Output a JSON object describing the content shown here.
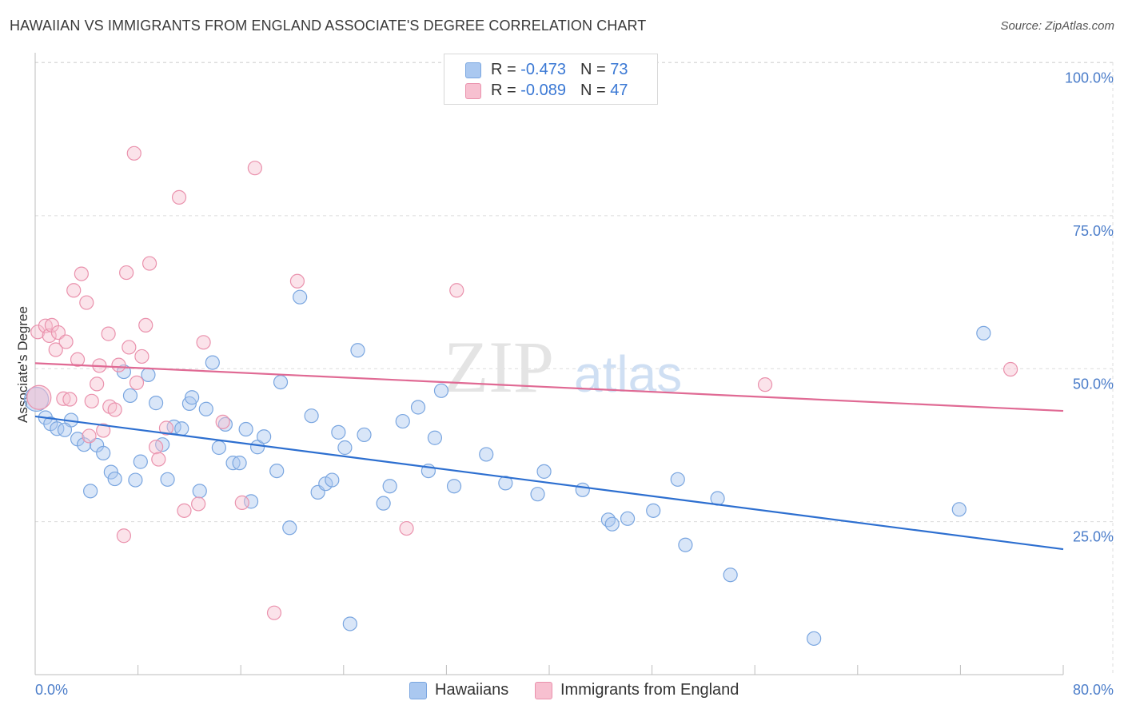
{
  "header": {
    "title": "HAWAIIAN VS IMMIGRANTS FROM ENGLAND ASSOCIATE'S DEGREE CORRELATION CHART",
    "source": "Source: ZipAtlas.com"
  },
  "watermark": {
    "zip": "ZIP",
    "atlas": "atlas"
  },
  "legend_top": {
    "rows": [
      {
        "r_label": "R = ",
        "r_value": "-0.473",
        "n_label": "N = ",
        "n_value": "73",
        "color": "#aac8f0",
        "border": "#7aa6e0"
      },
      {
        "r_label": "R = ",
        "r_value": "-0.089",
        "n_label": "N = ",
        "n_value": "47",
        "color": "#f7c0d0",
        "border": "#ea92ad"
      }
    ]
  },
  "legend_bottom": {
    "items": [
      {
        "label": "Hawaiians",
        "color": "#aac8f0",
        "border": "#7aa6e0"
      },
      {
        "label": "Immigrants from England",
        "color": "#f7c0d0",
        "border": "#ea92ad"
      }
    ]
  },
  "chart_data": {
    "type": "scatter",
    "title": "HAWAIIAN VS IMMIGRANTS FROM ENGLAND ASSOCIATE'S DEGREE CORRELATION CHART",
    "xlabel": "",
    "ylabel": "Associate's Degree",
    "xlim": [
      0,
      80
    ],
    "ylim": [
      0,
      102
    ],
    "x_tick_labels": [
      "0.0%",
      "80.0%"
    ],
    "y_ticks": [
      {
        "value": 25,
        "label": "25.0%"
      },
      {
        "value": 50,
        "label": "50.0%"
      },
      {
        "value": 75,
        "label": "75.0%"
      },
      {
        "value": 100,
        "label": "100.0%"
      }
    ],
    "grid": true,
    "legend_position": "top-center",
    "series": [
      {
        "name": "Hawaiians",
        "color": "#7aa6e0",
        "fill": "#aac8f0",
        "trend": {
          "x": [
            0,
            80
          ],
          "y": [
            42.2,
            20.5
          ],
          "color": "#2d6fd0"
        },
        "points": [
          [
            0.1,
            45.0
          ],
          [
            0.8,
            42.0
          ],
          [
            1.2,
            41.0
          ],
          [
            1.7,
            40.2
          ],
          [
            2.8,
            41.6
          ],
          [
            2.3,
            40.0
          ],
          [
            3.3,
            38.5
          ],
          [
            3.8,
            37.6
          ],
          [
            4.3,
            30.0
          ],
          [
            4.8,
            37.5
          ],
          [
            5.3,
            36.2
          ],
          [
            5.9,
            33.1
          ],
          [
            6.2,
            32.0
          ],
          [
            6.9,
            49.5
          ],
          [
            7.4,
            45.6
          ],
          [
            7.8,
            31.8
          ],
          [
            8.2,
            34.8
          ],
          [
            8.8,
            49.0
          ],
          [
            9.4,
            44.4
          ],
          [
            9.9,
            37.6
          ],
          [
            10.3,
            31.9
          ],
          [
            10.8,
            40.5
          ],
          [
            11.4,
            40.2
          ],
          [
            12.0,
            44.3
          ],
          [
            12.2,
            45.3
          ],
          [
            12.8,
            30.0
          ],
          [
            13.3,
            43.4
          ],
          [
            13.8,
            51.0
          ],
          [
            14.3,
            37.1
          ],
          [
            14.8,
            40.9
          ],
          [
            15.4,
            34.6
          ],
          [
            15.9,
            34.6
          ],
          [
            16.4,
            40.1
          ],
          [
            16.8,
            28.3
          ],
          [
            17.3,
            37.2
          ],
          [
            17.8,
            38.9
          ],
          [
            18.8,
            33.3
          ],
          [
            19.1,
            47.8
          ],
          [
            19.8,
            24.0
          ],
          [
            20.6,
            61.7
          ],
          [
            21.5,
            42.3
          ],
          [
            22.0,
            29.8
          ],
          [
            22.6,
            31.2
          ],
          [
            23.1,
            31.8
          ],
          [
            23.6,
            39.6
          ],
          [
            24.1,
            37.1
          ],
          [
            24.5,
            8.3
          ],
          [
            25.1,
            53.0
          ],
          [
            25.6,
            39.2
          ],
          [
            27.1,
            28.0
          ],
          [
            27.6,
            30.8
          ],
          [
            28.6,
            41.4
          ],
          [
            29.8,
            43.7
          ],
          [
            30.6,
            33.3
          ],
          [
            31.1,
            38.7
          ],
          [
            31.6,
            46.4
          ],
          [
            32.6,
            30.8
          ],
          [
            35.1,
            36.0
          ],
          [
            36.6,
            31.3
          ],
          [
            39.1,
            29.5
          ],
          [
            39.6,
            33.2
          ],
          [
            42.6,
            30.2
          ],
          [
            44.6,
            25.3
          ],
          [
            44.9,
            24.6
          ],
          [
            46.1,
            25.5
          ],
          [
            48.1,
            26.8
          ],
          [
            50.0,
            31.9
          ],
          [
            50.6,
            21.2
          ],
          [
            53.1,
            28.8
          ],
          [
            54.1,
            16.3
          ],
          [
            60.6,
            5.9
          ],
          [
            71.9,
            27.0
          ],
          [
            73.8,
            55.8
          ]
        ]
      },
      {
        "name": "Immigrants from England",
        "color": "#ea92ad",
        "fill": "#f7c0d0",
        "trend": {
          "x": [
            0,
            80
          ],
          "y": [
            50.9,
            43.1
          ],
          "color": "#e06a94"
        },
        "points": [
          [
            0.2,
            56.0
          ],
          [
            0.8,
            57.0
          ],
          [
            1.1,
            55.4
          ],
          [
            1.3,
            57.1
          ],
          [
            1.6,
            53.1
          ],
          [
            1.8,
            55.9
          ],
          [
            2.2,
            45.1
          ],
          [
            2.4,
            54.4
          ],
          [
            2.7,
            45.0
          ],
          [
            3.0,
            62.8
          ],
          [
            3.3,
            51.5
          ],
          [
            3.6,
            65.5
          ],
          [
            4.0,
            60.8
          ],
          [
            4.2,
            39.0
          ],
          [
            4.4,
            44.7
          ],
          [
            4.8,
            47.5
          ],
          [
            5.0,
            50.5
          ],
          [
            5.3,
            39.9
          ],
          [
            5.7,
            55.7
          ],
          [
            5.8,
            43.8
          ],
          [
            6.2,
            43.3
          ],
          [
            6.5,
            50.6
          ],
          [
            6.9,
            22.7
          ],
          [
            7.1,
            65.7
          ],
          [
            7.3,
            53.5
          ],
          [
            7.7,
            85.2
          ],
          [
            7.9,
            47.7
          ],
          [
            8.3,
            52.0
          ],
          [
            8.6,
            57.1
          ],
          [
            8.9,
            67.2
          ],
          [
            9.4,
            37.2
          ],
          [
            9.6,
            35.2
          ],
          [
            10.2,
            40.3
          ],
          [
            11.2,
            78.0
          ],
          [
            11.6,
            26.8
          ],
          [
            12.7,
            27.9
          ],
          [
            13.1,
            54.3
          ],
          [
            14.6,
            41.3
          ],
          [
            16.1,
            28.1
          ],
          [
            17.1,
            82.8
          ],
          [
            18.6,
            10.1
          ],
          [
            20.4,
            64.3
          ],
          [
            28.9,
            23.9
          ],
          [
            32.8,
            62.8
          ],
          [
            56.8,
            47.4
          ],
          [
            75.9,
            49.9
          ],
          [
            0.3,
            45.3
          ]
        ]
      }
    ]
  }
}
